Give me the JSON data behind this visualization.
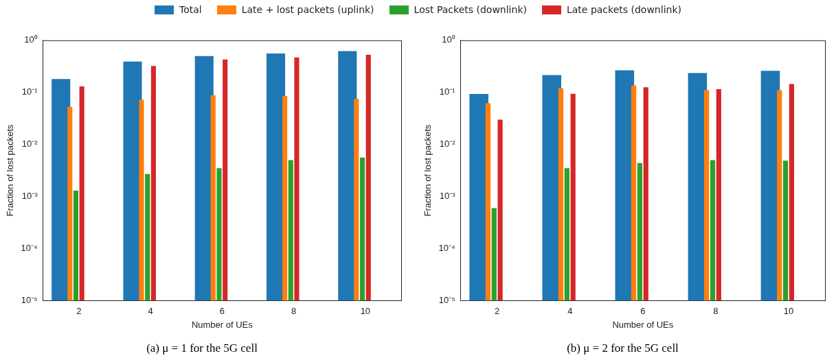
{
  "chart_data": [
    {
      "type": "bar",
      "title": "(a) μ = 1 for the 5G cell",
      "xlabel": "Number of UEs",
      "ylabel": "Fraction of lost packets",
      "categories": [
        "2",
        "4",
        "6",
        "8",
        "10"
      ],
      "log": "y",
      "ylim": [
        1e-05,
        1
      ],
      "yticks": [
        {
          "value": 1e-05,
          "label": "10⁻⁵"
        },
        {
          "value": 0.0001,
          "label": "10⁻⁴"
        },
        {
          "value": 0.001,
          "label": "10⁻³"
        },
        {
          "value": 0.01,
          "label": "10⁻²"
        },
        {
          "value": 0.1,
          "label": "10⁻¹"
        },
        {
          "value": 1,
          "label": "10⁰"
        }
      ],
      "legend": "top",
      "series": [
        {
          "name": "Total",
          "color": "#1f77b4",
          "values": [
            0.18,
            0.39,
            0.5,
            0.56,
            0.62
          ]
        },
        {
          "name": "Late + lost packets (uplink)",
          "color": "#ff7f0e",
          "values": [
            0.053,
            0.072,
            0.088,
            0.085,
            0.075
          ]
        },
        {
          "name": "Lost Packets (downlink)",
          "color": "#2ca02c",
          "values": [
            0.0013,
            0.0027,
            0.0035,
            0.005,
            0.0056
          ]
        },
        {
          "name": "Late packets (downlink)",
          "color": "#d62728",
          "values": [
            0.13,
            0.32,
            0.43,
            0.47,
            0.53
          ]
        }
      ]
    },
    {
      "type": "bar",
      "title": "(b) μ = 2 for the 5G cell",
      "xlabel": "Number of UEs",
      "ylabel": "Fraction of lost packets",
      "categories": [
        "2",
        "4",
        "6",
        "8",
        "10"
      ],
      "log": "y",
      "ylim": [
        1e-05,
        1
      ],
      "yticks": [
        {
          "value": 1e-05,
          "label": "10⁻⁵"
        },
        {
          "value": 0.0001,
          "label": "10⁻⁴"
        },
        {
          "value": 0.001,
          "label": "10⁻³"
        },
        {
          "value": 0.01,
          "label": "10⁻²"
        },
        {
          "value": 0.1,
          "label": "10⁻¹"
        },
        {
          "value": 1,
          "label": "10⁰"
        }
      ],
      "series": [
        {
          "color": "#1f77b4",
          "values": [
            0.093,
            0.215,
            0.265,
            0.235,
            0.26
          ]
        },
        {
          "color": "#ff7f0e",
          "values": [
            0.062,
            0.12,
            0.135,
            0.11,
            0.11
          ]
        },
        {
          "color": "#2ca02c",
          "values": [
            0.0006,
            0.0035,
            0.0044,
            0.005,
            0.0049
          ]
        },
        {
          "color": "#d62728",
          "values": [
            0.03,
            0.094,
            0.125,
            0.115,
            0.145
          ]
        }
      ]
    }
  ]
}
